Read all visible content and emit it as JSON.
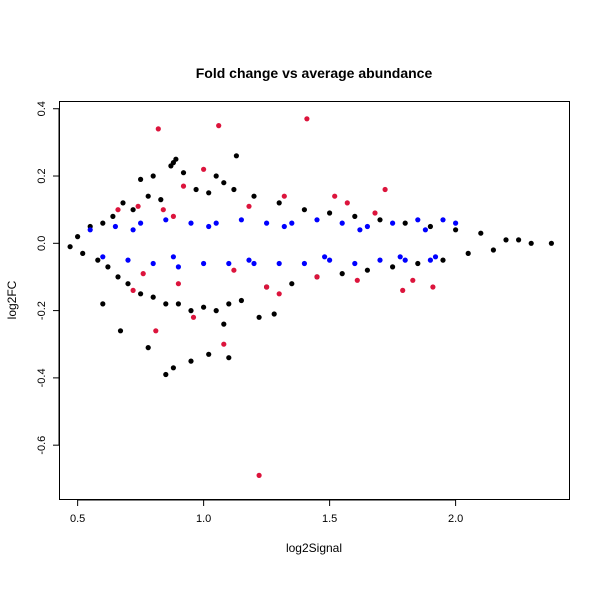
{
  "chart_data": {
    "type": "scatter",
    "title": "Fold change vs average abundance",
    "xlabel": "log2Signal",
    "ylabel": "log2FC",
    "xlim": [
      0.43,
      2.45
    ],
    "ylim": [
      -0.76,
      0.42
    ],
    "xticks": [
      0.5,
      1.0,
      1.5,
      2.0
    ],
    "yticks": [
      -0.6,
      -0.4,
      -0.2,
      0.0,
      0.2,
      0.4
    ],
    "xtick_labels": [
      "0.5",
      "1.0",
      "1.5",
      "2.0"
    ],
    "ytick_labels": [
      "-0.6",
      "-0.4",
      "-0.2",
      "0.0",
      "0.2",
      "0.4"
    ],
    "grid": false,
    "legend": "none",
    "colors": {
      "black": "#000000",
      "blue": "#0000ff",
      "red": "#dc143c"
    },
    "series": [
      {
        "color": "#000000",
        "points": [
          [
            0.47,
            -0.01
          ],
          [
            0.5,
            0.02
          ],
          [
            0.52,
            -0.03
          ],
          [
            0.55,
            0.05
          ],
          [
            0.58,
            -0.05
          ],
          [
            0.6,
            0.06
          ],
          [
            0.62,
            -0.07
          ],
          [
            0.64,
            0.08
          ],
          [
            0.66,
            -0.1
          ],
          [
            0.68,
            0.12
          ],
          [
            0.7,
            -0.12
          ],
          [
            0.72,
            0.1
          ],
          [
            0.75,
            -0.15
          ],
          [
            0.78,
            0.14
          ],
          [
            0.8,
            -0.16
          ],
          [
            0.83,
            0.13
          ],
          [
            0.85,
            -0.18
          ],
          [
            0.87,
            0.23
          ],
          [
            0.88,
            0.24
          ],
          [
            0.89,
            0.25
          ],
          [
            0.9,
            -0.18
          ],
          [
            0.92,
            0.21
          ],
          [
            0.95,
            -0.2
          ],
          [
            0.97,
            0.16
          ],
          [
            1.0,
            -0.19
          ],
          [
            1.02,
            0.15
          ],
          [
            1.05,
            -0.2
          ],
          [
            1.08,
            0.18
          ],
          [
            1.1,
            -0.18
          ],
          [
            1.12,
            0.16
          ],
          [
            1.13,
            0.26
          ],
          [
            1.15,
            -0.17
          ],
          [
            1.2,
            0.14
          ],
          [
            1.25,
            -0.13
          ],
          [
            1.3,
            0.12
          ],
          [
            1.35,
            -0.12
          ],
          [
            1.4,
            0.1
          ],
          [
            1.45,
            -0.1
          ],
          [
            1.5,
            0.09
          ],
          [
            1.55,
            -0.09
          ],
          [
            1.6,
            0.08
          ],
          [
            1.65,
            -0.08
          ],
          [
            1.7,
            0.07
          ],
          [
            1.75,
            -0.07
          ],
          [
            1.8,
            0.06
          ],
          [
            1.85,
            -0.06
          ],
          [
            1.9,
            0.05
          ],
          [
            1.95,
            -0.05
          ],
          [
            2.0,
            0.04
          ],
          [
            2.05,
            -0.03
          ],
          [
            2.1,
            0.03
          ],
          [
            2.15,
            -0.02
          ],
          [
            2.2,
            0.01
          ],
          [
            2.25,
            0.01
          ],
          [
            2.3,
            0.0
          ],
          [
            2.38,
            0.0
          ],
          [
            0.67,
            -0.26
          ],
          [
            0.78,
            -0.31
          ],
          [
            0.85,
            -0.39
          ],
          [
            0.88,
            -0.37
          ],
          [
            0.95,
            -0.35
          ],
          [
            1.02,
            -0.33
          ],
          [
            1.1,
            -0.34
          ],
          [
            1.08,
            -0.24
          ],
          [
            1.28,
            -0.21
          ],
          [
            1.22,
            -0.22
          ],
          [
            0.6,
            -0.18
          ],
          [
            0.75,
            0.19
          ],
          [
            0.8,
            0.2
          ],
          [
            1.05,
            0.2
          ]
        ]
      },
      {
        "color": "#0000ff",
        "points": [
          [
            0.55,
            0.04
          ],
          [
            0.6,
            -0.04
          ],
          [
            0.65,
            0.05
          ],
          [
            0.7,
            -0.05
          ],
          [
            0.75,
            0.06
          ],
          [
            0.8,
            -0.06
          ],
          [
            0.85,
            0.07
          ],
          [
            0.9,
            -0.07
          ],
          [
            0.95,
            0.06
          ],
          [
            1.0,
            -0.06
          ],
          [
            1.05,
            0.06
          ],
          [
            1.1,
            -0.06
          ],
          [
            1.15,
            0.07
          ],
          [
            1.2,
            -0.06
          ],
          [
            1.25,
            0.06
          ],
          [
            1.3,
            -0.06
          ],
          [
            1.35,
            0.06
          ],
          [
            1.4,
            -0.06
          ],
          [
            1.45,
            0.07
          ],
          [
            1.5,
            -0.05
          ],
          [
            1.55,
            0.06
          ],
          [
            1.6,
            -0.06
          ],
          [
            1.65,
            0.05
          ],
          [
            1.7,
            -0.05
          ],
          [
            1.75,
            0.06
          ],
          [
            1.8,
            -0.05
          ],
          [
            1.85,
            0.07
          ],
          [
            1.9,
            -0.05
          ],
          [
            1.95,
            0.07
          ],
          [
            2.0,
            0.06
          ],
          [
            0.72,
            0.04
          ],
          [
            0.88,
            -0.04
          ],
          [
            1.02,
            0.05
          ],
          [
            1.18,
            -0.05
          ],
          [
            1.32,
            0.05
          ],
          [
            1.48,
            -0.04
          ],
          [
            1.62,
            0.04
          ],
          [
            1.78,
            -0.04
          ],
          [
            1.88,
            0.04
          ],
          [
            1.92,
            -0.04
          ]
        ]
      },
      {
        "color": "#dc143c",
        "points": [
          [
            0.82,
            0.34
          ],
          [
            1.06,
            0.35
          ],
          [
            1.41,
            0.37
          ],
          [
            1.0,
            0.22
          ],
          [
            0.92,
            0.17
          ],
          [
            1.32,
            0.14
          ],
          [
            1.52,
            0.14
          ],
          [
            1.72,
            0.16
          ],
          [
            1.57,
            0.12
          ],
          [
            0.74,
            0.11
          ],
          [
            1.18,
            0.11
          ],
          [
            0.88,
            0.08
          ],
          [
            1.61,
            -0.11
          ],
          [
            1.83,
            -0.11
          ],
          [
            1.91,
            -0.13
          ],
          [
            1.79,
            -0.14
          ],
          [
            1.3,
            -0.15
          ],
          [
            0.96,
            -0.22
          ],
          [
            0.81,
            -0.26
          ],
          [
            1.08,
            -0.3
          ],
          [
            1.22,
            -0.69
          ],
          [
            0.72,
            -0.14
          ],
          [
            0.9,
            -0.12
          ],
          [
            1.25,
            -0.13
          ],
          [
            0.66,
            0.1
          ],
          [
            1.45,
            -0.1
          ],
          [
            0.76,
            -0.09
          ],
          [
            0.84,
            0.1
          ],
          [
            1.12,
            -0.08
          ],
          [
            1.68,
            0.09
          ]
        ]
      }
    ]
  }
}
